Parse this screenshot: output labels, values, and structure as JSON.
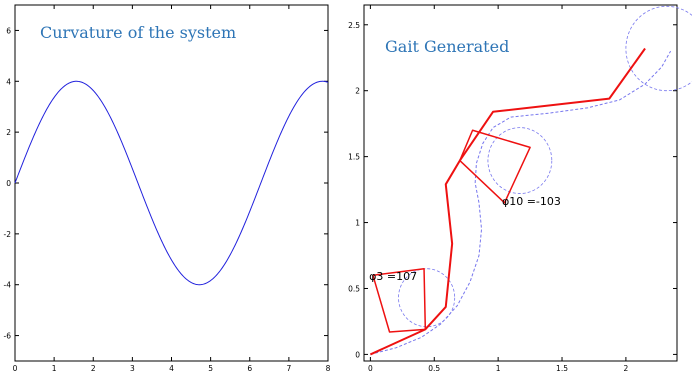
{
  "chart_data": [
    {
      "type": "line",
      "title": "Curvature of the system",
      "xlim": [
        0,
        8
      ],
      "ylim": [
        -7,
        7
      ],
      "xticks": [
        0,
        1,
        2,
        3,
        4,
        5,
        6,
        7,
        8
      ],
      "yticks": [
        -6,
        -4,
        -2,
        0,
        2,
        4,
        6
      ],
      "series": [
        {
          "color": "#2222dd",
          "function": "4*sin(x)",
          "x_range": [
            0,
            8
          ],
          "points": [
            [
              0,
              0
            ],
            [
              0.5,
              1.92
            ],
            [
              1,
              3.37
            ],
            [
              1.57,
              4
            ],
            [
              2,
              3.64
            ],
            [
              2.5,
              2.39
            ],
            [
              3,
              0.56
            ],
            [
              3.5,
              -1.4
            ],
            [
              4,
              -3.03
            ],
            [
              4.71,
              -4
            ],
            [
              5,
              -3.84
            ],
            [
              5.5,
              -2.83
            ],
            [
              6,
              -1.12
            ],
            [
              6.5,
              0.86
            ],
            [
              7,
              2.63
            ],
            [
              7.5,
              3.75
            ],
            [
              7.85,
              4
            ],
            [
              8,
              3.96
            ]
          ]
        }
      ]
    },
    {
      "type": "line",
      "title": "Gait Generated",
      "xlim": [
        -0.05,
        2.4
      ],
      "ylim": [
        -0.05,
        2.65
      ],
      "xticks": [
        0,
        0.5,
        1,
        1.5,
        2
      ],
      "yticks": [
        0,
        0.5,
        1,
        1.5,
        2,
        2.5
      ],
      "series": [
        {
          "style": "dashed",
          "color": "#7777ee",
          "points": [
            [
              0,
              0
            ],
            [
              0.2,
              0.05
            ],
            [
              0.4,
              0.13
            ],
            [
              0.55,
              0.23
            ],
            [
              0.68,
              0.37
            ],
            [
              0.78,
              0.55
            ],
            [
              0.85,
              0.75
            ],
            [
              0.87,
              0.95
            ],
            [
              0.85,
              1.15
            ],
            [
              0.82,
              1.3
            ],
            [
              0.83,
              1.45
            ],
            [
              0.88,
              1.6
            ],
            [
              0.96,
              1.72
            ],
            [
              1.1,
              1.8
            ],
            [
              1.4,
              1.83
            ],
            [
              1.7,
              1.87
            ],
            [
              1.95,
              1.93
            ],
            [
              2.15,
              2.05
            ],
            [
              2.28,
              2.18
            ],
            [
              2.35,
              2.3
            ]
          ]
        },
        {
          "style": "solid",
          "color": "#ee1111",
          "width": 2,
          "points": [
            [
              0,
              0
            ],
            [
              0.43,
              0.19
            ],
            [
              0.59,
              0.36
            ],
            [
              0.64,
              0.84
            ],
            [
              0.59,
              1.29
            ],
            [
              0.7,
              1.47
            ],
            [
              0.96,
              1.84
            ],
            [
              1.87,
              1.94
            ],
            [
              2.15,
              2.32
            ]
          ]
        },
        {
          "style": "solid",
          "color": "#ee1111",
          "width": 1.5,
          "points": [
            [
              0.43,
              0.19
            ],
            [
              0.42,
              0.65
            ],
            [
              0.02,
              0.6
            ],
            [
              0.15,
              0.17
            ],
            [
              0.43,
              0.19
            ]
          ]
        },
        {
          "style": "solid",
          "color": "#ee1111",
          "width": 1.5,
          "points": [
            [
              0.7,
              1.47
            ],
            [
              0.8,
              1.7
            ],
            [
              1.25,
              1.57
            ],
            [
              1.05,
              1.15
            ],
            [
              0.7,
              1.47
            ]
          ]
        }
      ],
      "circles": [
        {
          "cx": 0.44,
          "cy": 0.43,
          "r": 0.22,
          "color": "#7777ee",
          "style": "dashed"
        },
        {
          "cx": 1.17,
          "cy": 1.47,
          "r": 0.25,
          "color": "#7777ee",
          "style": "dashed"
        },
        {
          "cx": 2.32,
          "cy": 2.32,
          "r": 0.32,
          "color": "#7777ee",
          "style": "dashed"
        }
      ],
      "annotations": [
        {
          "text": "φ3 =107",
          "x": -0.01,
          "y": 0.595
        },
        {
          "text": "φ10 =-103",
          "x": 1.03,
          "y": 1.165
        }
      ]
    }
  ]
}
